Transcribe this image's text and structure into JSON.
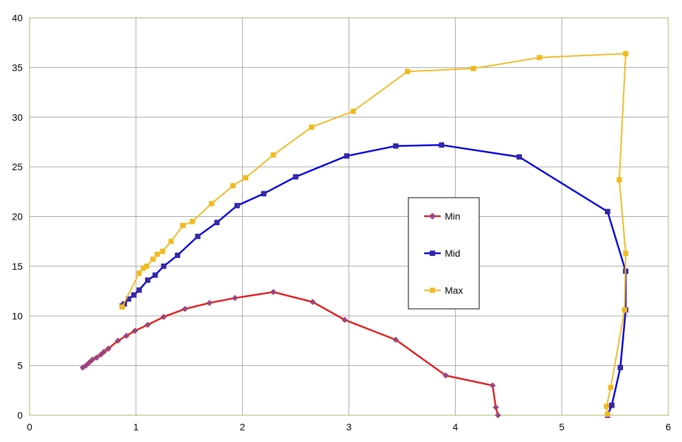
{
  "chart_data": {
    "type": "scatter",
    "xlim": [
      0,
      6
    ],
    "ylim": [
      0,
      40
    ],
    "x_ticks": [
      0,
      1,
      2,
      3,
      4,
      5,
      6
    ],
    "y_ticks": [
      0,
      5,
      10,
      15,
      20,
      25,
      30,
      35,
      40
    ],
    "grid": true,
    "legend_position": "center-right",
    "colors": {
      "plot_border": "#9bbb59",
      "grid": "#a6a6a6"
    },
    "series": [
      {
        "name": "Min",
        "color": "#e31a1c",
        "marker": "diamond",
        "marker_color": "#7f4fa1",
        "points": [
          [
            0.5,
            4.8
          ],
          [
            0.53,
            5.0
          ],
          [
            0.56,
            5.3
          ],
          [
            0.59,
            5.6
          ],
          [
            0.63,
            5.8
          ],
          [
            0.67,
            6.1
          ],
          [
            0.7,
            6.4
          ],
          [
            0.74,
            6.7
          ],
          [
            0.83,
            7.5
          ],
          [
            0.91,
            8.0
          ],
          [
            0.99,
            8.5
          ],
          [
            1.11,
            9.1
          ],
          [
            1.26,
            9.9
          ],
          [
            1.46,
            10.7
          ],
          [
            1.69,
            11.3
          ],
          [
            1.93,
            11.8
          ],
          [
            2.29,
            12.4
          ],
          [
            2.66,
            11.4
          ],
          [
            2.96,
            9.6
          ],
          [
            3.44,
            7.6
          ],
          [
            3.91,
            4.0
          ],
          [
            4.35,
            3.0
          ],
          [
            4.38,
            0.8
          ],
          [
            4.4,
            0.0
          ]
        ]
      },
      {
        "name": "Mid",
        "color": "#0000e0",
        "marker": "square",
        "marker_color": "#3b2a9a",
        "points": [
          [
            0.87,
            11.0
          ],
          [
            0.89,
            11.2
          ],
          [
            0.93,
            11.7
          ],
          [
            0.98,
            12.1
          ],
          [
            1.03,
            12.6
          ],
          [
            1.11,
            13.6
          ],
          [
            1.18,
            14.1
          ],
          [
            1.26,
            15.0
          ],
          [
            1.39,
            16.1
          ],
          [
            1.58,
            18.0
          ],
          [
            1.76,
            19.4
          ],
          [
            1.95,
            21.1
          ],
          [
            2.2,
            22.3
          ],
          [
            2.5,
            24.0
          ],
          [
            2.98,
            26.1
          ],
          [
            3.44,
            27.1
          ],
          [
            3.87,
            27.2
          ],
          [
            4.6,
            26.0
          ],
          [
            5.43,
            20.5
          ],
          [
            5.6,
            14.5
          ],
          [
            5.6,
            10.6
          ],
          [
            5.55,
            4.8
          ],
          [
            5.47,
            1.0
          ],
          [
            5.43,
            0.0
          ]
        ]
      },
      {
        "name": "Max",
        "color": "#f2b91e",
        "marker": "square",
        "marker_color": "#f2b91e",
        "points": [
          [
            0.87,
            10.9
          ],
          [
            1.03,
            14.3
          ],
          [
            1.07,
            14.8
          ],
          [
            1.1,
            15.0
          ],
          [
            1.16,
            15.7
          ],
          [
            1.2,
            16.2
          ],
          [
            1.25,
            16.5
          ],
          [
            1.33,
            17.5
          ],
          [
            1.44,
            19.1
          ],
          [
            1.53,
            19.5
          ],
          [
            1.71,
            21.3
          ],
          [
            1.91,
            23.1
          ],
          [
            2.03,
            23.9
          ],
          [
            2.29,
            26.2
          ],
          [
            2.65,
            29.0
          ],
          [
            3.04,
            30.6
          ],
          [
            3.55,
            34.6
          ],
          [
            4.17,
            34.9
          ],
          [
            4.79,
            36.0
          ],
          [
            5.6,
            36.4
          ],
          [
            5.54,
            23.7
          ],
          [
            5.6,
            16.3
          ],
          [
            5.59,
            10.6
          ],
          [
            5.46,
            2.8
          ],
          [
            5.42,
            0.9
          ],
          [
            5.43,
            0.1
          ]
        ]
      }
    ]
  }
}
